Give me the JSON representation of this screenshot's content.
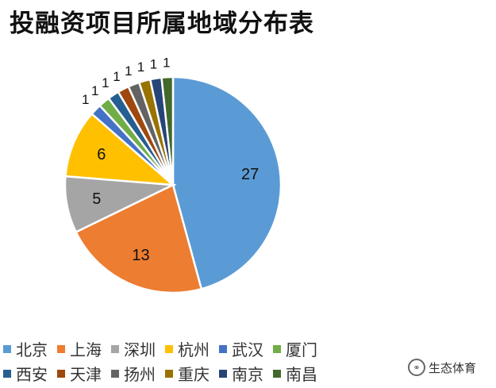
{
  "header": {
    "title": "投融资项目所属地域分布表"
  },
  "chart_data": {
    "type": "pie",
    "title": "投融资项目所属地域分布表",
    "slices": [
      {
        "label": "北京",
        "value": 27,
        "color": "#5b9bd5"
      },
      {
        "label": "上海",
        "value": 13,
        "color": "#ed7d31"
      },
      {
        "label": "深圳",
        "value": 5,
        "color": "#a5a5a5"
      },
      {
        "label": "杭州",
        "value": 6,
        "color": "#ffc000"
      },
      {
        "label": "武汉",
        "value": 1,
        "color": "#4472c4"
      },
      {
        "label": "厦门",
        "value": 1,
        "color": "#70ad47"
      },
      {
        "label": "西安",
        "value": 1,
        "color": "#255e91"
      },
      {
        "label": "天津",
        "value": 1,
        "color": "#9e480e"
      },
      {
        "label": "扬州",
        "value": 1,
        "color": "#636363"
      },
      {
        "label": "重庆",
        "value": 1,
        "color": "#997300"
      },
      {
        "label": "南京",
        "value": 1,
        "color": "#264478"
      },
      {
        "label": "南昌",
        "value": 1,
        "color": "#43682b"
      }
    ],
    "legend_position": "bottom"
  },
  "watermark": {
    "text": "生态体育"
  }
}
